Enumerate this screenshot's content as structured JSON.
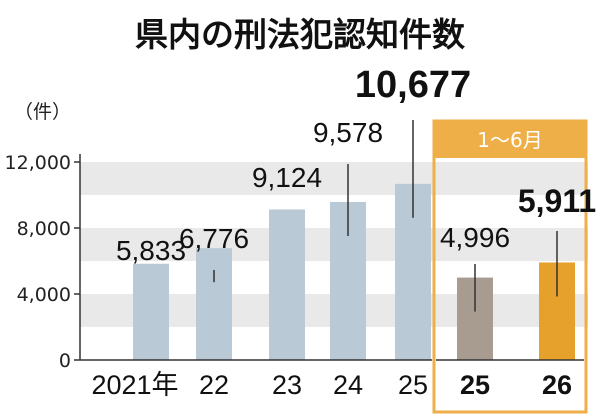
{
  "chart_data": {
    "type": "bar",
    "title": "県内の刑法犯認知件数",
    "unit_label": "（件）",
    "ylim": [
      0,
      12000
    ],
    "yticks": [
      0,
      4000,
      8000,
      12000
    ],
    "ytick_labels": [
      "0",
      "4,000",
      "8,000",
      "12,000"
    ],
    "grid": "horizontal bands",
    "categories": [
      "2021年",
      "22",
      "23",
      "24",
      "25",
      "25",
      "26"
    ],
    "values": [
      5833,
      6776,
      9124,
      9578,
      10677,
      4996,
      5911
    ],
    "value_labels": [
      "5,833",
      "6,776",
      "9,124",
      "9,578",
      "10,677",
      "4,996",
      "5,911"
    ],
    "period_group": {
      "label": "1〜6月",
      "category_indices": [
        5,
        6
      ]
    },
    "colors": {
      "annual_bar": "#b9cad6",
      "period_prev_bar": "#a79c8f",
      "period_curr_bar": "#e5a12b",
      "period_box": "#eeaf49",
      "band": "#e9e9e9"
    }
  }
}
